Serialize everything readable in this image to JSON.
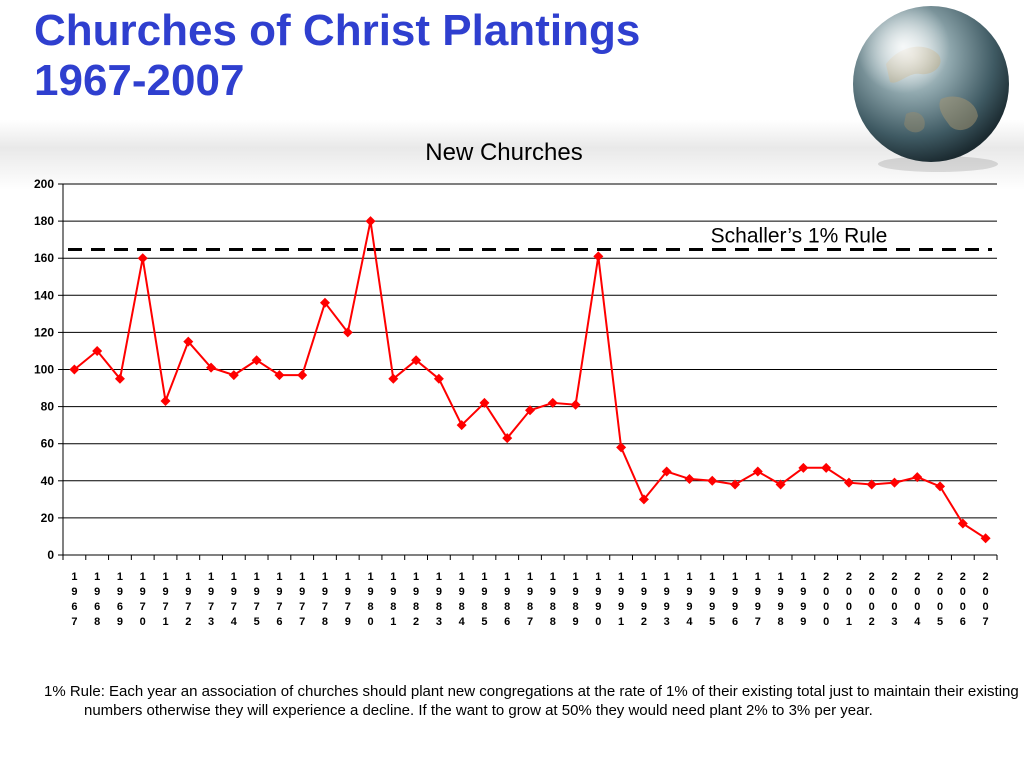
{
  "slide": {
    "title_line1": "Churches of Christ Plantings",
    "title_line2": "1967-2007",
    "footnote": "1% Rule: Each year an association of churches should plant new congregations at the rate of 1% of their existing total just to maintain their existing numbers otherwise they will experience a decline.  If the want to grow at 50% they would need plant 2% to 3% per year."
  },
  "colors": {
    "title": "#2f3fcf",
    "series": "#ff0000",
    "gridline": "#000000",
    "reference_line": "#000000"
  },
  "icons": [
    "globe-icon"
  ],
  "chart_data": {
    "type": "line",
    "title": "New Churches",
    "xlabel": "",
    "ylabel": "",
    "ylim": [
      0,
      200
    ],
    "yticks": [
      "0",
      "20",
      "40",
      "60",
      "80",
      "100",
      "120",
      "140",
      "160",
      "180",
      "200"
    ],
    "grid": true,
    "legend": "none",
    "categories": [
      "1967",
      "1968",
      "1969",
      "1970",
      "1971",
      "1972",
      "1973",
      "1974",
      "1975",
      "1976",
      "1977",
      "1978",
      "1979",
      "1980",
      "1981",
      "1982",
      "1983",
      "1984",
      "1985",
      "1986",
      "1987",
      "1988",
      "1989",
      "1990",
      "1991",
      "1992",
      "1993",
      "1994",
      "1995",
      "1996",
      "1997",
      "1998",
      "1999",
      "2000",
      "2001",
      "2002",
      "2003",
      "2004",
      "2005",
      "2006",
      "2007"
    ],
    "series": [
      {
        "values": [
          100,
          110,
          95,
          160,
          83,
          115,
          101,
          97,
          105,
          97,
          97,
          136,
          120,
          180,
          95,
          105,
          95,
          70,
          82,
          63,
          78,
          82,
          81,
          161,
          58,
          30,
          45,
          41,
          40,
          38,
          45,
          38,
          47,
          47,
          39,
          38,
          39,
          42,
          37,
          17,
          9
        ]
      }
    ],
    "reference_line": {
      "value": 162,
      "label": "Schaller’s 1% Rule"
    }
  }
}
